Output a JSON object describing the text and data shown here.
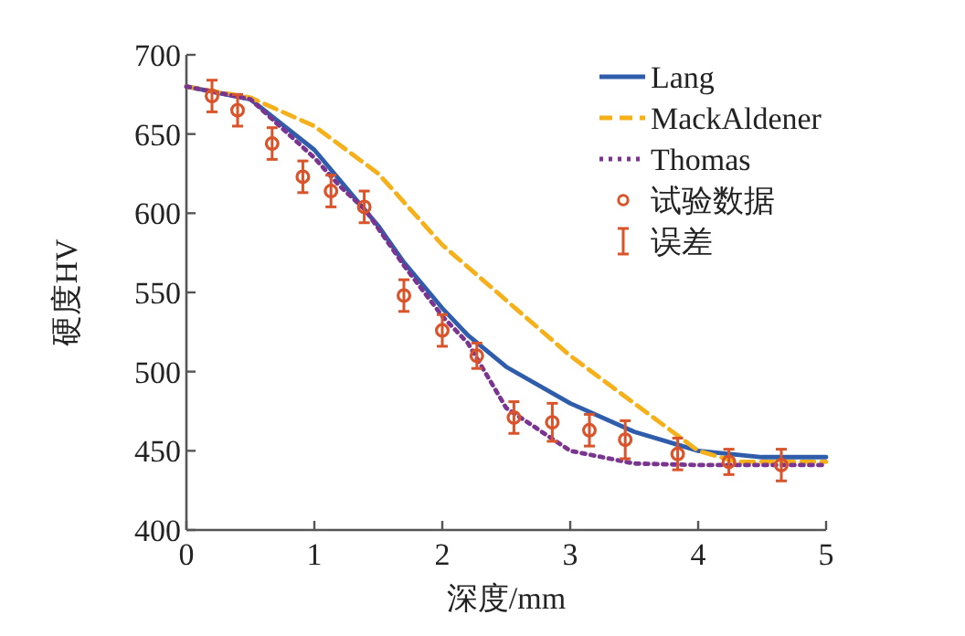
{
  "chart_data": {
    "type": "line",
    "xlabel": "深度/mm",
    "ylabel": "硬度HV",
    "xlim": [
      0,
      5
    ],
    "ylim": [
      400,
      700
    ],
    "xticks": [
      0,
      1,
      2,
      3,
      4,
      5
    ],
    "yticks": [
      400,
      450,
      500,
      550,
      600,
      650,
      700
    ],
    "grid": false,
    "legend": "top right",
    "annotations": [
      "误差"
    ],
    "series": [
      {
        "name": "Lang",
        "color": "#2f5dab",
        "line_style": "solid",
        "x": [
          0,
          0.5,
          1,
          1.5,
          1.7,
          2,
          2.2,
          2.5,
          3,
          3.5,
          4,
          4.5,
          5
        ],
        "values": [
          680,
          672,
          640,
          592,
          569,
          540,
          523,
          503,
          480,
          462,
          450,
          446,
          446
        ]
      },
      {
        "name": "MackAldener",
        "color": "#f5b01a",
        "line_style": "dashed",
        "x": [
          0,
          0.5,
          1,
          1.5,
          2,
          2.5,
          3,
          3.5,
          4,
          4.3,
          5
        ],
        "values": [
          680,
          673,
          655,
          625,
          580,
          545,
          510,
          480,
          450,
          443,
          443
        ]
      },
      {
        "name": "Thomas",
        "color": "#7a3590",
        "line_style": "dotted",
        "x": [
          0,
          0.5,
          1,
          1.2,
          1.4,
          1.7,
          2,
          2.2,
          2.5,
          3,
          3.5,
          4,
          5
        ],
        "values": [
          680,
          672,
          635,
          617,
          602,
          567,
          535,
          518,
          477,
          450,
          442,
          441,
          441
        ]
      },
      {
        "name": "试验数据",
        "type": "scatter",
        "marker": "circle",
        "color": "#d9542b",
        "x": [
          0.2,
          0.4,
          0.67,
          0.91,
          1.13,
          1.39,
          1.7,
          2.0,
          2.27,
          2.56,
          2.86,
          3.15,
          3.43,
          3.84,
          4.24,
          4.65
        ],
        "values": [
          674,
          665,
          644,
          623,
          614,
          604,
          548,
          526,
          510,
          471,
          468,
          463,
          457,
          448,
          443,
          441
        ],
        "errors": [
          10,
          10,
          10,
          10,
          10,
          10,
          10,
          10,
          8,
          10,
          12,
          10,
          12,
          10,
          8,
          10
        ]
      }
    ]
  }
}
